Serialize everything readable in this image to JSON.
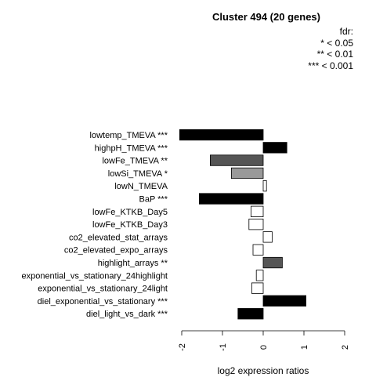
{
  "title": "Cluster 494 (20 genes)",
  "legend": {
    "heading": "fdr:",
    "items": [
      "* < 0.05",
      "** < 0.01",
      "*** < 0.001"
    ]
  },
  "chart_data": {
    "type": "bar",
    "orientation": "horizontal",
    "title": "Cluster 494 (20 genes)",
    "xlabel": "log2 expression ratios",
    "xlim": [
      -2,
      2
    ],
    "xticks": [
      -2,
      -1,
      0,
      1,
      2
    ],
    "xtick_labels": [
      "-2",
      "-1",
      "0",
      "1",
      "2"
    ],
    "categories": [
      "lowtemp_TMEVA ***",
      "highpH_TMEVA ***",
      "lowFe_TMEVA **",
      "lowSi_TMEVA *",
      "lowN_TMEVA",
      "BaP ***",
      "lowFe_KTKB_Day5",
      "lowFe_KTKB_Day3",
      "co2_elevated_stat_arrays",
      "co2_elevated_expo_arrays",
      "highlight_arrays **",
      "exponential_vs_stationary_24highlight",
      "exponential_vs_stationary_24light",
      "diel_exponential_vs_stationary ***",
      "diel_light_vs_dark ***"
    ],
    "values": [
      -2.05,
      0.58,
      -1.3,
      -0.78,
      0.08,
      -1.57,
      -0.3,
      -0.35,
      0.22,
      -0.25,
      0.47,
      -0.17,
      -0.28,
      1.05,
      -0.62
    ],
    "fill_colors": [
      "#000000",
      "#000000",
      "#555555",
      "#999999",
      "#ffffff",
      "#000000",
      "#ffffff",
      "#ffffff",
      "#ffffff",
      "#ffffff",
      "#555555",
      "#ffffff",
      "#ffffff",
      "#000000",
      "#000000"
    ],
    "legend_position": "top-right",
    "grid": false
  }
}
